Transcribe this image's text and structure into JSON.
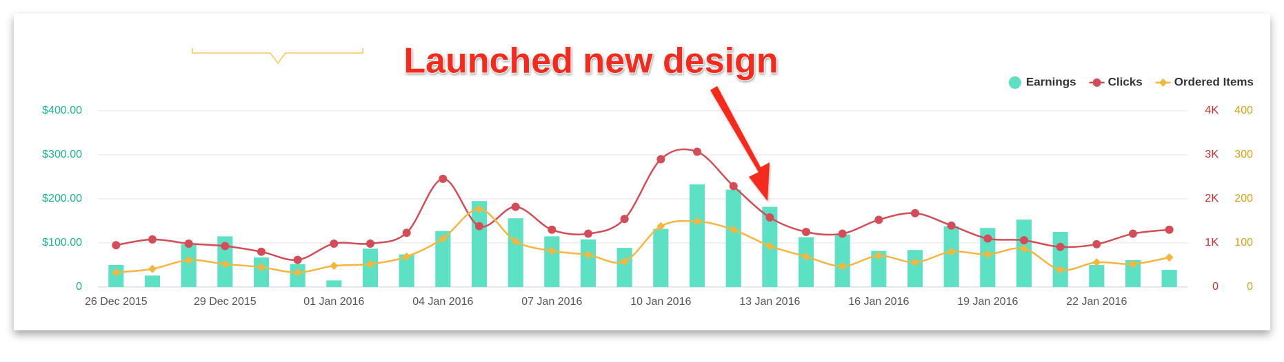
{
  "chart_data": {
    "type": "bar-line",
    "annotation": "Launched new design",
    "legend": "top-right",
    "grid": true,
    "categories": [
      "26 Dec 2015",
      null,
      null,
      "29 Dec 2015",
      null,
      null,
      "01 Jan 2016",
      null,
      null,
      "04 Jan 2016",
      null,
      null,
      "07 Jan 2016",
      null,
      null,
      "10 Jan 2016",
      null,
      null,
      "13 Jan 2016",
      null,
      null,
      "16 Jan 2016",
      null,
      null,
      "19 Jan 2016",
      null,
      null,
      "22 Jan 2016",
      null,
      null
    ],
    "ylim": [
      0,
      400
    ],
    "yticks": [
      0,
      {
        "value": 100,
        "label": "$100.00"
      },
      {
        "value": 200,
        "label": "$200.00"
      },
      {
        "value": 300,
        "label": "$300.00"
      },
      {
        "value": 400,
        "label": "$400.00"
      }
    ],
    "y2lim": [
      0,
      4000
    ],
    "y2ticks": [
      0,
      {
        "value": 1000,
        "label": "1K"
      },
      {
        "value": 2000,
        "label": "2K"
      },
      {
        "value": 3000,
        "label": "3K"
      },
      {
        "value": 4000,
        "label": "4K"
      }
    ],
    "y3lim": [
      0,
      400
    ],
    "y3ticks": [
      0,
      100,
      200,
      300,
      400
    ],
    "series": [
      {
        "name": "Earnings",
        "type": "bar",
        "axis": "y",
        "color": "#5ce1c4",
        "values": [
          50,
          26,
          97,
          115,
          67,
          52,
          15,
          87,
          74,
          127,
          195,
          156,
          115,
          108,
          89,
          132,
          233,
          221,
          182,
          113,
          119,
          82,
          84,
          138,
          134,
          153,
          125,
          50,
          61,
          39
        ]
      },
      {
        "name": "Clicks",
        "type": "line",
        "marker": "circle",
        "axis": "y2",
        "color": "#d24d57",
        "values": [
          950,
          1080,
          985,
          930,
          800,
          615,
          985,
          985,
          1230,
          2455,
          1380,
          1820,
          1300,
          1210,
          1545,
          2900,
          3070,
          2290,
          1580,
          1250,
          1210,
          1525,
          1675,
          1395,
          1100,
          1060,
          910,
          970,
          1210,
          1300
        ]
      },
      {
        "name": "Ordered Items",
        "type": "line",
        "marker": "diamond",
        "axis": "y3",
        "color": "#f4b63f",
        "values": [
          33,
          41,
          61,
          52,
          45,
          33,
          48,
          52,
          69,
          110,
          177,
          104,
          82,
          73,
          58,
          138,
          149,
          130,
          93,
          69,
          47,
          71,
          56,
          80,
          74,
          87,
          39,
          56,
          52,
          67
        ]
      }
    ]
  }
}
